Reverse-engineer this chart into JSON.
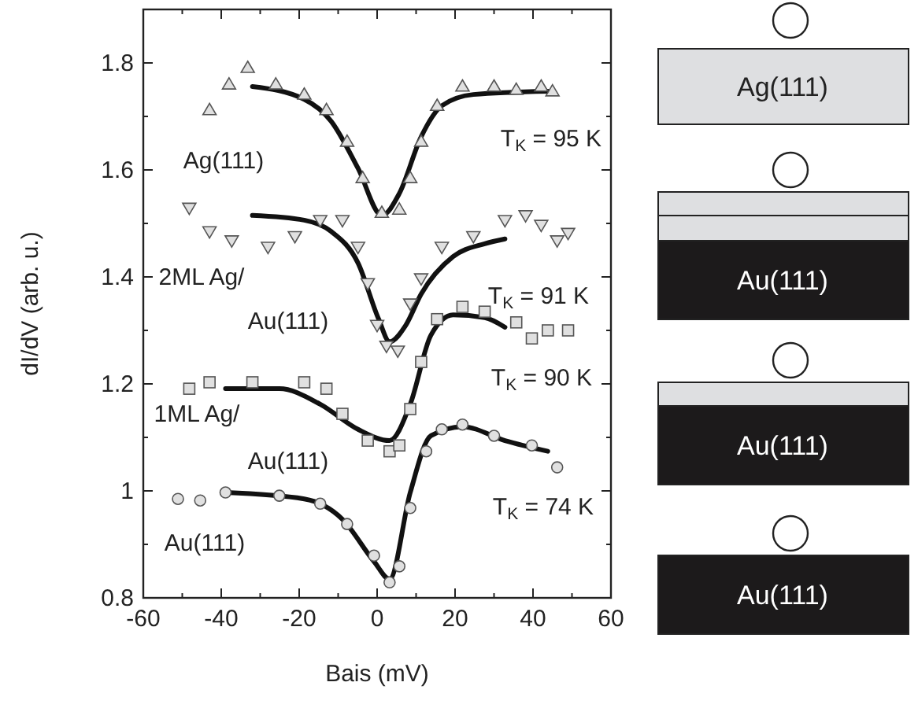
{
  "chart_data": {
    "type": "scatter",
    "xlabel": "Bais (mV)",
    "ylabel": "dI/dV (arb. u.)",
    "xlim": [
      -60,
      60
    ],
    "ylim": [
      0.8,
      1.9
    ],
    "xticks": [
      -60,
      {
        "value": -50,
        "label": null
      },
      -40,
      {
        "value": -30,
        "label": null
      },
      -20,
      {
        "value": -10,
        "label": null
      },
      0,
      {
        "value": 10,
        "label": null
      },
      20,
      {
        "value": 30,
        "label": null
      },
      40,
      {
        "value": 50,
        "label": null
      },
      60
    ],
    "yticks": [
      0.8,
      {
        "value": 0.9,
        "label": null
      },
      1.0,
      {
        "value": 1.1,
        "label": null
      },
      1.2,
      {
        "value": 1.3,
        "label": null
      },
      1.4,
      {
        "value": 1.5,
        "label": null
      },
      1.6,
      {
        "value": 1.7,
        "label": null
      },
      1.8
    ],
    "grid": false,
    "series": [
      {
        "marker": "triangle",
        "color": "#555555",
        "x": [
          -43,
          -38,
          -33.2,
          -26,
          -18.7,
          -13,
          -7.7,
          -3.7,
          1.2,
          5.7,
          8.5,
          11.3,
          15.4,
          21.9,
          30,
          35.7,
          42.1,
          45
        ],
        "values": [
          1.712,
          1.76,
          1.791,
          1.76,
          1.741,
          1.712,
          1.653,
          1.585,
          1.52,
          1.526,
          1.585,
          1.653,
          1.72,
          1.756,
          1.756,
          1.75,
          1.756,
          1.747
        ]
      },
      {
        "type": "line",
        "color": "#111111",
        "x": [
          -32,
          -18.7,
          -11.8,
          -4.9,
          1.2,
          5.7,
          11.3,
          16.6,
          24.7,
          43.8
        ],
        "values": [
          1.756,
          1.732,
          1.691,
          1.603,
          1.515,
          1.556,
          1.662,
          1.72,
          1.741,
          1.747
        ]
      },
      {
        "marker": "triangle-down",
        "color": "#555555",
        "x": [
          -48.2,
          -43,
          -37.3,
          -28,
          -21.1,
          -14.6,
          -8.9,
          -4.9,
          -2.4,
          0,
          2.4,
          5.3,
          8.5,
          11.3,
          16.6,
          24.7,
          32.8,
          38.1,
          42.1,
          46.2,
          49
        ],
        "values": [
          1.529,
          1.485,
          1.468,
          1.456,
          1.476,
          1.506,
          1.506,
          1.456,
          1.388,
          1.31,
          1.271,
          1.262,
          1.35,
          1.397,
          1.456,
          1.476,
          1.506,
          1.515,
          1.497,
          1.468,
          1.482
        ]
      },
      {
        "type": "line",
        "color": "#111111",
        "x": [
          -32,
          -18.7,
          -11.8,
          -4.9,
          0.4,
          3.2,
          7.3,
          11.3,
          19.5,
          27.6,
          32.8
        ],
        "values": [
          1.515,
          1.506,
          1.485,
          1.426,
          1.321,
          1.279,
          1.309,
          1.368,
          1.438,
          1.462,
          1.471
        ]
      },
      {
        "marker": "square",
        "color": "#555555",
        "x": [
          -48.2,
          -43,
          -32,
          -18.7,
          -13,
          -8.9,
          -2.4,
          3.2,
          5.7,
          8.5,
          11.3,
          15.4,
          21.9,
          27.6,
          35.7,
          39.7,
          43.8,
          49
        ],
        "values": [
          1.191,
          1.203,
          1.203,
          1.203,
          1.191,
          1.144,
          1.094,
          1.074,
          1.085,
          1.153,
          1.241,
          1.321,
          1.344,
          1.335,
          1.315,
          1.285,
          1.3,
          1.3
        ]
      },
      {
        "type": "line",
        "color": "#111111",
        "x": [
          -38.9,
          -25.1,
          -14.6,
          -4.9,
          3.2,
          8.5,
          13.8,
          19.5,
          27.6,
          32.8
        ],
        "values": [
          1.191,
          1.191,
          1.162,
          1.115,
          1.094,
          1.162,
          1.291,
          1.329,
          1.324,
          1.306
        ]
      },
      {
        "marker": "circle",
        "color": "#555555",
        "x": [
          -51.1,
          -45.4,
          -38.9,
          -25.1,
          -14.6,
          -7.7,
          -0.8,
          3.2,
          5.7,
          8.5,
          12.6,
          16.6,
          21.9,
          30,
          39.7,
          46.2
        ],
        "values": [
          0.985,
          0.982,
          0.997,
          0.991,
          0.976,
          0.938,
          0.879,
          0.829,
          0.859,
          0.968,
          1.074,
          1.115,
          1.124,
          1.103,
          1.085,
          1.044
        ]
      },
      {
        "type": "line",
        "color": "#111111",
        "x": [
          -38.9,
          -18.7,
          -8.9,
          -0.8,
          3.2,
          8.5,
          13.8,
          21.9,
          32.8,
          43.8
        ],
        "values": [
          0.997,
          0.985,
          0.947,
          0.868,
          0.835,
          0.997,
          1.103,
          1.12,
          1.094,
          1.074
        ]
      }
    ],
    "annotations": [
      "Ag(111)",
      "T$_{K}$ = 95 K",
      "2ML Ag/",
      "Au(111)",
      "T$_{K}$ = 91 K",
      "T$_{K}$ = 90 K",
      "1ML Ag/",
      "Au(111)",
      "T$_{K}$ = 74 K",
      "Au(111)",
      "Ag(111)",
      "Au(111)",
      "Au(111)",
      "Au(111)"
    ]
  }
}
